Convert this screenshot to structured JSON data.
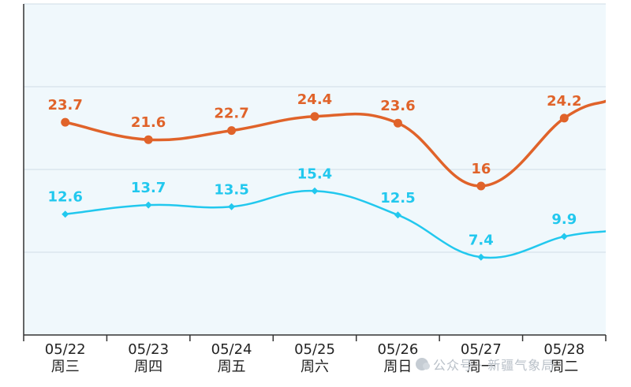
{
  "chart_data": {
    "type": "line",
    "categories": [
      "05/22",
      "05/23",
      "05/24",
      "05/25",
      "05/26",
      "05/27",
      "05/28"
    ],
    "weekdays": [
      "周三",
      "周四",
      "周五",
      "周六",
      "周日",
      "周一",
      "周二"
    ],
    "series": [
      {
        "color": "#e0632a",
        "values": [
          23.7,
          21.6,
          22.7,
          24.4,
          23.6,
          16,
          24.2
        ],
        "value_labels": [
          "23.7",
          "21.6",
          "22.7",
          "24.4",
          "23.6",
          "16",
          "24.2"
        ]
      },
      {
        "color": "#22c8ee",
        "values": [
          12.6,
          13.7,
          13.5,
          15.4,
          12.5,
          7.4,
          9.9
        ],
        "value_labels": [
          "12.6",
          "13.7",
          "13.5",
          "15.4",
          "12.5",
          "7.4",
          "9.9"
        ]
      }
    ],
    "ylim": [
      -2,
      38
    ],
    "grid": true,
    "title": "",
    "xlabel": "",
    "ylabel": ""
  },
  "watermark": {
    "text": "公众号 · 新疆气象局"
  },
  "colors": {
    "plot_background": "#f0f8fc",
    "grid": "#cfdde6",
    "axis": "#333333"
  }
}
